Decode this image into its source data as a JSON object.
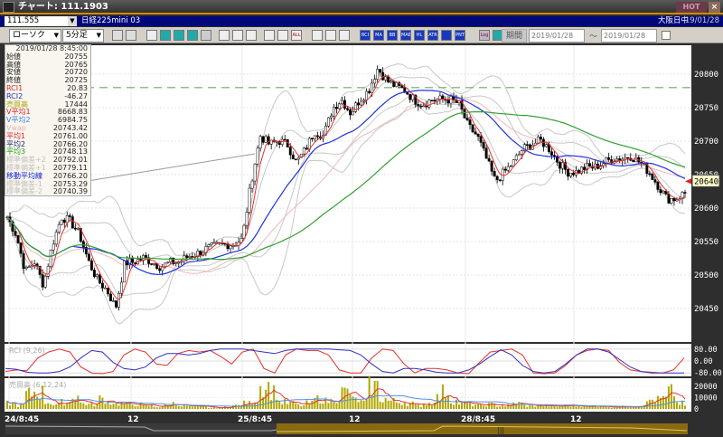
{
  "window": {
    "title": "チャート: 111.1903",
    "hot_label": "HOT",
    "close_label": "×"
  },
  "symbol_bar": {
    "code": "111.555",
    "name": "日経225mini 03",
    "exchange": "大阪日中",
    "date": "19/01/28"
  },
  "toolbar": {
    "chart_type": "ローソク",
    "interval": "5分足",
    "period_label": "期間",
    "date_from": "2019/01/28",
    "date_to": "2019/01/28",
    "tilde": "～",
    "icons": [
      "zoom-icon",
      "crosshair-icon",
      "tool-icon",
      "tool-icon",
      "tool-icon",
      "tool-icon",
      "tool-icon",
      "pen-icon",
      "pointer-icon",
      "eraser-icon",
      "tool-icon",
      "tool-icon",
      "all-icon",
      "gear-icon",
      "brush-icon",
      "color-icon",
      "rci-icon",
      "ma-icon",
      "bb-icon",
      "mae-icon",
      "hl-icon",
      "atr-icon",
      "ichimoku-icon",
      "pnt-icon",
      "log-icon",
      "color-icon"
    ],
    "icon_labels": [
      "",
      "",
      "",
      "",
      "",
      "",
      "",
      "",
      "",
      "",
      "",
      "",
      "ALL",
      "",
      "",
      "",
      "RCI",
      "MA",
      "BB",
      "MAE",
      "HL",
      "ATR",
      "",
      "PNT",
      "Log",
      ""
    ]
  },
  "info_panel": {
    "datetime": "2019/01/28 8:45:00",
    "rows": [
      {
        "label": "始値",
        "value": "20755",
        "color": "#222"
      },
      {
        "label": "高値",
        "value": "20765",
        "color": "#222"
      },
      {
        "label": "安値",
        "value": "20720",
        "color": "#222"
      },
      {
        "label": "終値",
        "value": "20725",
        "color": "#222"
      },
      {
        "label": "RCI1",
        "value": "20.83",
        "color": "#e02020"
      },
      {
        "label": "RCI2",
        "value": "-46.27",
        "color": "#2030c0"
      },
      {
        "label": "売買高",
        "value": "17444",
        "color": "#a8a000"
      },
      {
        "label": "V平均1",
        "value": "8668.83",
        "color": "#e02020"
      },
      {
        "label": "V平均2",
        "value": "6984.75",
        "color": "#4080e0"
      },
      {
        "label": "Vwap",
        "value": "20743.42",
        "color": "#f0b0b0"
      },
      {
        "label": "平均1",
        "value": "20761.00",
        "color": "#e02020"
      },
      {
        "label": "平均2",
        "value": "20766.20",
        "color": "#202080"
      },
      {
        "label": "平均3",
        "value": "20748.13",
        "color": "#20a020"
      },
      {
        "label": "標準偏差+2",
        "value": "20792.01",
        "color": "#c0c0c0"
      },
      {
        "label": "標準偏差+1",
        "value": "20779.11",
        "color": "#c0c0c0"
      },
      {
        "label": "移動平均線",
        "value": "20766.20",
        "color": "#1020e0"
      },
      {
        "label": "標準偏差-1",
        "value": "20753.29",
        "color": "#c0c0c0"
      },
      {
        "label": "標準偏差-2",
        "value": "20740.39",
        "color": "#c0c0c0"
      }
    ]
  },
  "colors": {
    "up": "#ffffff",
    "down": "#000000",
    "ma_short": "#e83030",
    "ma_mid": "#2030e0",
    "ma_long": "#30a030",
    "band": "#c8c8c8",
    "vwap": "#f0b8b8",
    "volume": "#b0a800",
    "axis_bg": "#2e2e2e"
  },
  "chart_data": [
    {
      "type": "candlestick",
      "price_ticks": [
        "20800",
        "20750",
        "20700",
        "20650",
        "20600",
        "20550",
        "20500",
        "20450"
      ],
      "ylim": [
        20430,
        20840
      ],
      "last_price": "20640",
      "horizontal_line": 20780,
      "time_labels": [
        "24/8:45",
        "12",
        "25/8:45",
        "12",
        "28/8:45",
        "12"
      ],
      "close_path": [
        20587,
        20560,
        20505,
        20520,
        20485,
        20546,
        20587,
        20580,
        20560,
        20520,
        20492,
        20478,
        20451,
        20519,
        20519,
        20526,
        20520,
        20512,
        20519,
        20519,
        20528,
        20532,
        20539,
        20543,
        20546,
        20546,
        20553,
        20640,
        20708,
        20695,
        20701,
        20695,
        20668,
        20688,
        20715,
        20708,
        20749,
        20762,
        20742,
        20762,
        20776,
        20809,
        20790,
        20782,
        20776,
        20762,
        20755,
        20762,
        20762,
        20762,
        20755,
        20722,
        20708,
        20674,
        20640,
        20654,
        20668,
        20688,
        20695,
        20701,
        20688,
        20668,
        20654,
        20654,
        20661,
        20661,
        20668,
        20674,
        20674,
        20678,
        20668,
        20654,
        20634,
        20614,
        20614,
        20623
      ]
    },
    {
      "type": "line",
      "title": "RCI (9,26)",
      "ticks": [
        "80.00",
        "0.00",
        "-80.00"
      ],
      "ylim": [
        -100,
        100
      ],
      "series": [
        {
          "name": "RCI1",
          "values": [
            -70,
            -60,
            -65,
            20,
            60,
            80,
            60,
            -40,
            -80,
            -85,
            -70,
            40,
            80,
            60,
            -20,
            -30,
            50,
            70,
            60,
            70,
            30,
            -20,
            60,
            80,
            -50,
            -80,
            40,
            80,
            70,
            70,
            40,
            -60,
            -80,
            -80,
            20,
            80,
            70,
            -20,
            -80,
            -50,
            -50,
            -60,
            -80,
            -85,
            -10,
            60,
            70,
            80,
            40,
            -80,
            -85,
            -80,
            -30,
            40,
            70,
            80,
            70,
            -10,
            -60,
            -70,
            -75,
            -80,
            -60,
            20
          ]
        },
        {
          "name": "RCI2",
          "values": [
            -50,
            -55,
            -75,
            -80,
            -80,
            -70,
            -40,
            20,
            70,
            60,
            -10,
            -50,
            -60,
            -40,
            20,
            50,
            50,
            40,
            50,
            70,
            80,
            80,
            80,
            70,
            60,
            50,
            70,
            80,
            80,
            80,
            80,
            75,
            70,
            40,
            -20,
            -70,
            -80,
            -50,
            -50,
            -60,
            -75,
            -80,
            -80,
            -60,
            -20,
            30,
            75,
            40,
            -30,
            -70,
            -80,
            -70,
            -20,
            40,
            80,
            80,
            60,
            10,
            -40,
            -70,
            -80,
            -80,
            -80,
            -80
          ]
        }
      ]
    },
    {
      "type": "bar",
      "title": "売買高 (6,12,24)",
      "ticks": [
        "20000",
        "10000",
        "0"
      ],
      "ylim": [
        0,
        25000
      ],
      "values": [
        5000,
        3000,
        13000,
        15000,
        6000,
        4000,
        6000,
        12000,
        5000,
        4000,
        9000,
        6000,
        5000,
        4000,
        4000,
        3000,
        2000,
        3000,
        5000,
        3000,
        2000,
        2000,
        1000,
        1000,
        2000,
        3000,
        5000,
        8000,
        20000,
        15000,
        6000,
        5000,
        3000,
        5000,
        9000,
        7000,
        10000,
        15000,
        8000,
        6000,
        20000,
        9000,
        7000,
        6000,
        5000,
        3000,
        5000,
        10000,
        15000,
        7000,
        5000,
        4000,
        3000,
        4000,
        3000,
        3000,
        5000,
        3000,
        3000,
        3000,
        2000,
        3000,
        3000,
        3000,
        2000,
        3000,
        2000,
        2000,
        2000,
        3000,
        5000,
        8000,
        9000,
        15000,
        5000,
        3000
      ]
    }
  ]
}
